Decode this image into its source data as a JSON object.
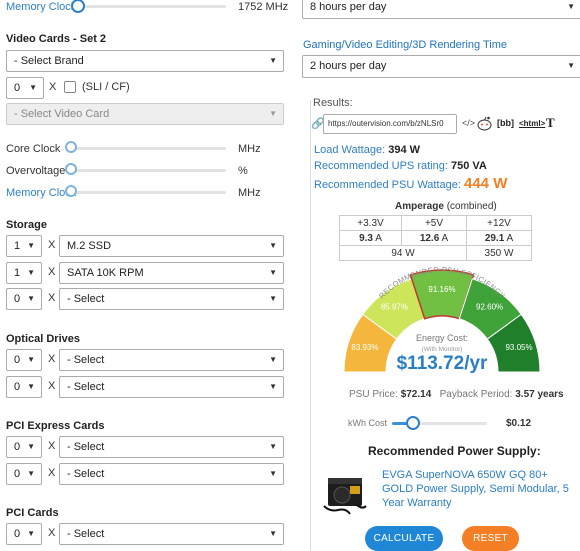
{
  "left": {
    "memory_clock_top_label": "Memory Clock",
    "memory_clock_top_value": "1752 MHz",
    "video_cards_heading": "Video Cards - Set 2",
    "select_brand": "- Select Brand",
    "vc_qty": "0",
    "x": "X",
    "sli_label": "(SLI / CF)",
    "select_video_card": "- Select Video Card",
    "core_clock": "Core Clock",
    "overvoltage": "Overvoltage",
    "memory_clock": "Memory Clock",
    "unit_mhz": "MHz",
    "unit_pct": "%",
    "storage_heading": "Storage",
    "storage_rows": [
      {
        "qty": "1",
        "item": "M.2 SSD"
      },
      {
        "qty": "1",
        "item": "SATA 10K RPM"
      },
      {
        "qty": "0",
        "item": "- Select"
      }
    ],
    "optical_heading": "Optical Drives",
    "optical_rows": [
      {
        "qty": "0",
        "item": "- Select"
      },
      {
        "qty": "0",
        "item": "- Select"
      }
    ],
    "pcie_heading": "PCI Express Cards",
    "pcie_rows": [
      {
        "qty": "0",
        "item": "- Select"
      },
      {
        "qty": "0",
        "item": "- Select"
      }
    ],
    "pci_heading": "PCI Cards",
    "pci_rows": [
      {
        "qty": "0",
        "item": "- Select"
      }
    ]
  },
  "right": {
    "hours_select_top": "8 hours per day",
    "gaming_heading": "Gaming/Video Editing/3D Rendering Time",
    "hours_select_gaming": "2 hours per day",
    "results_label": "Results:",
    "share_url": "https://outervision.com/b/zNLSr0",
    "share_embed": "</>",
    "share_bb": "[bb]",
    "share_html": "<html>",
    "share_t": "T",
    "load_wattage_label": "Load Wattage:",
    "load_wattage_value": "394 W",
    "ups_label": "Recommended UPS rating:",
    "ups_value": "750 VA",
    "psu_label": "Recommended PSU Wattage:",
    "psu_value": "444 W",
    "amperage_title": "Amperage",
    "amperage_sub": "(combined)",
    "amp_headers": [
      "+3.3V",
      "+5V",
      "+12V"
    ],
    "amp_values": [
      {
        "num": "9.3",
        "unit": " A"
      },
      {
        "num": "12.6",
        "unit": " A"
      },
      {
        "num": "29.1",
        "unit": " A"
      }
    ],
    "amp_watts": [
      "94 W",
      "350 W"
    ],
    "gauge": {
      "title": "RECOMMENDED PSU EFFICIENCY",
      "segments": [
        {
          "label": "83.93%",
          "color": "#f4b63c"
        },
        {
          "label": "85.97%",
          "color": "#cde55b"
        },
        {
          "label": "91.16%",
          "color": "#72c043"
        },
        {
          "label": "92.60%",
          "color": "#3fa33a"
        },
        {
          "label": "93.05%",
          "color": "#1f7f2a"
        }
      ],
      "energy_cost_label": "Energy Cost:",
      "energy_cost_sub": "(With Monitor)",
      "energy_cost_value": "$113.72/yr"
    },
    "psu_price_label": "PSU Price:",
    "psu_price_value": "$72.14",
    "payback_label": "Payback Period:",
    "payback_value": "3.57 years",
    "kwh_label": "kWh Cost",
    "kwh_value": "$0.12",
    "recommended_heading": "Recommended Power Supply:",
    "recommended_psu": "EVGA SuperNOVA 650W GQ 80+ GOLD Power Supply, Semi Modular, 5 Year Warranty",
    "calculate": "CALCULATE",
    "reset": "RESET",
    "colors": {
      "accent_blue": "#2f7fc4",
      "psu_orange": "#f47f24",
      "calc_btn": "#1f87d6",
      "reset_btn": "#f47f24"
    }
  }
}
